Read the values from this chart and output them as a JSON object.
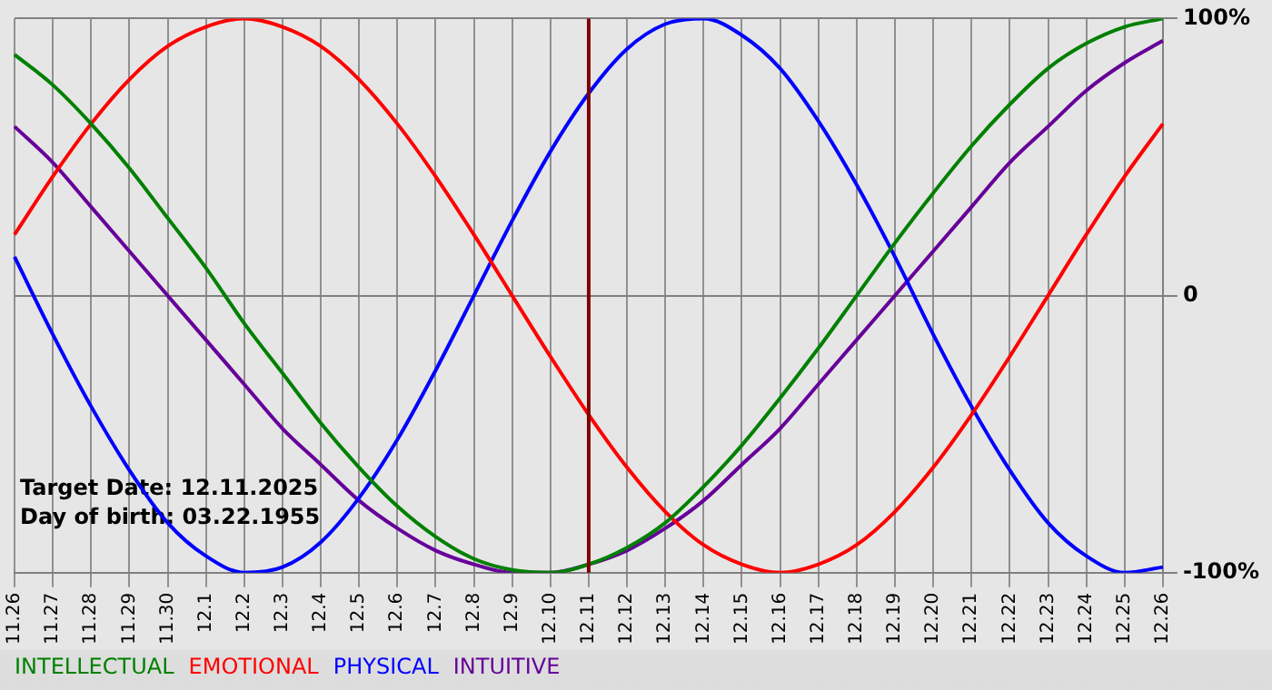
{
  "chart_data": {
    "type": "line",
    "categories": [
      "11.26",
      "11.27",
      "11.28",
      "11.29",
      "11.30",
      "12.1",
      "12.2",
      "12.3",
      "12.4",
      "12.5",
      "12.6",
      "12.7",
      "12.8",
      "12.9",
      "12.10",
      "12.11",
      "12.12",
      "12.13",
      "12.14",
      "12.15",
      "12.16",
      "12.17",
      "12.18",
      "12.19",
      "12.20",
      "12.21",
      "12.22",
      "12.23",
      "12.24",
      "12.25",
      "12.26"
    ],
    "series": [
      {
        "name": "INTELLECTUAL",
        "color": "#008000",
        "values": [
          87,
          76,
          62,
          46,
          28,
          10,
          -10,
          -28,
          -46,
          -62,
          -76,
          -87,
          -95,
          -99,
          -100,
          -97,
          -91,
          -82,
          -69,
          -54,
          -37,
          -19,
          0,
          19,
          37,
          54,
          69,
          82,
          91,
          97,
          100
        ]
      },
      {
        "name": "EMOTIONAL",
        "color": "#ff0000",
        "values": [
          22,
          43,
          62,
          78,
          90,
          97,
          100,
          97,
          90,
          78,
          62,
          43,
          22,
          0,
          -22,
          -43,
          -62,
          -78,
          -90,
          -97,
          -100,
          -97,
          -90,
          -78,
          -62,
          -43,
          -22,
          0,
          22,
          43,
          62
        ]
      },
      {
        "name": "PHYSICAL",
        "color": "#0000ff",
        "values": [
          14,
          -14,
          -40,
          -63,
          -82,
          -94,
          -100,
          -98,
          -89,
          -73,
          -52,
          -27,
          0,
          27,
          52,
          73,
          89,
          98,
          100,
          94,
          82,
          63,
          40,
          14,
          -14,
          -40,
          -63,
          -82,
          -94,
          -100,
          -98
        ]
      },
      {
        "name": "INTUITIVE",
        "color": "#660099",
        "values": [
          61,
          48,
          32,
          16,
          0,
          -16,
          -32,
          -48,
          -61,
          -74,
          -84,
          -92,
          -97,
          -100,
          -100,
          -97,
          -92,
          -84,
          -74,
          -61,
          -48,
          -32,
          -16,
          0,
          16,
          32,
          48,
          61,
          74,
          84,
          92
        ]
      }
    ],
    "ylim": [
      -100,
      100
    ],
    "yticks": [
      {
        "value": 100,
        "label": "100%"
      },
      0,
      {
        "value": -100,
        "label": "-100%"
      }
    ],
    "ref_lines": [
      {
        "axis": "x",
        "value": "12.11",
        "color": "#800000"
      }
    ],
    "annotations": [
      "Target Date: 12.11.2025",
      "Day of birth: 03.22.1955"
    ],
    "grid": true,
    "legend": "bottom left",
    "marker": "none",
    "line_style": "solid"
  }
}
